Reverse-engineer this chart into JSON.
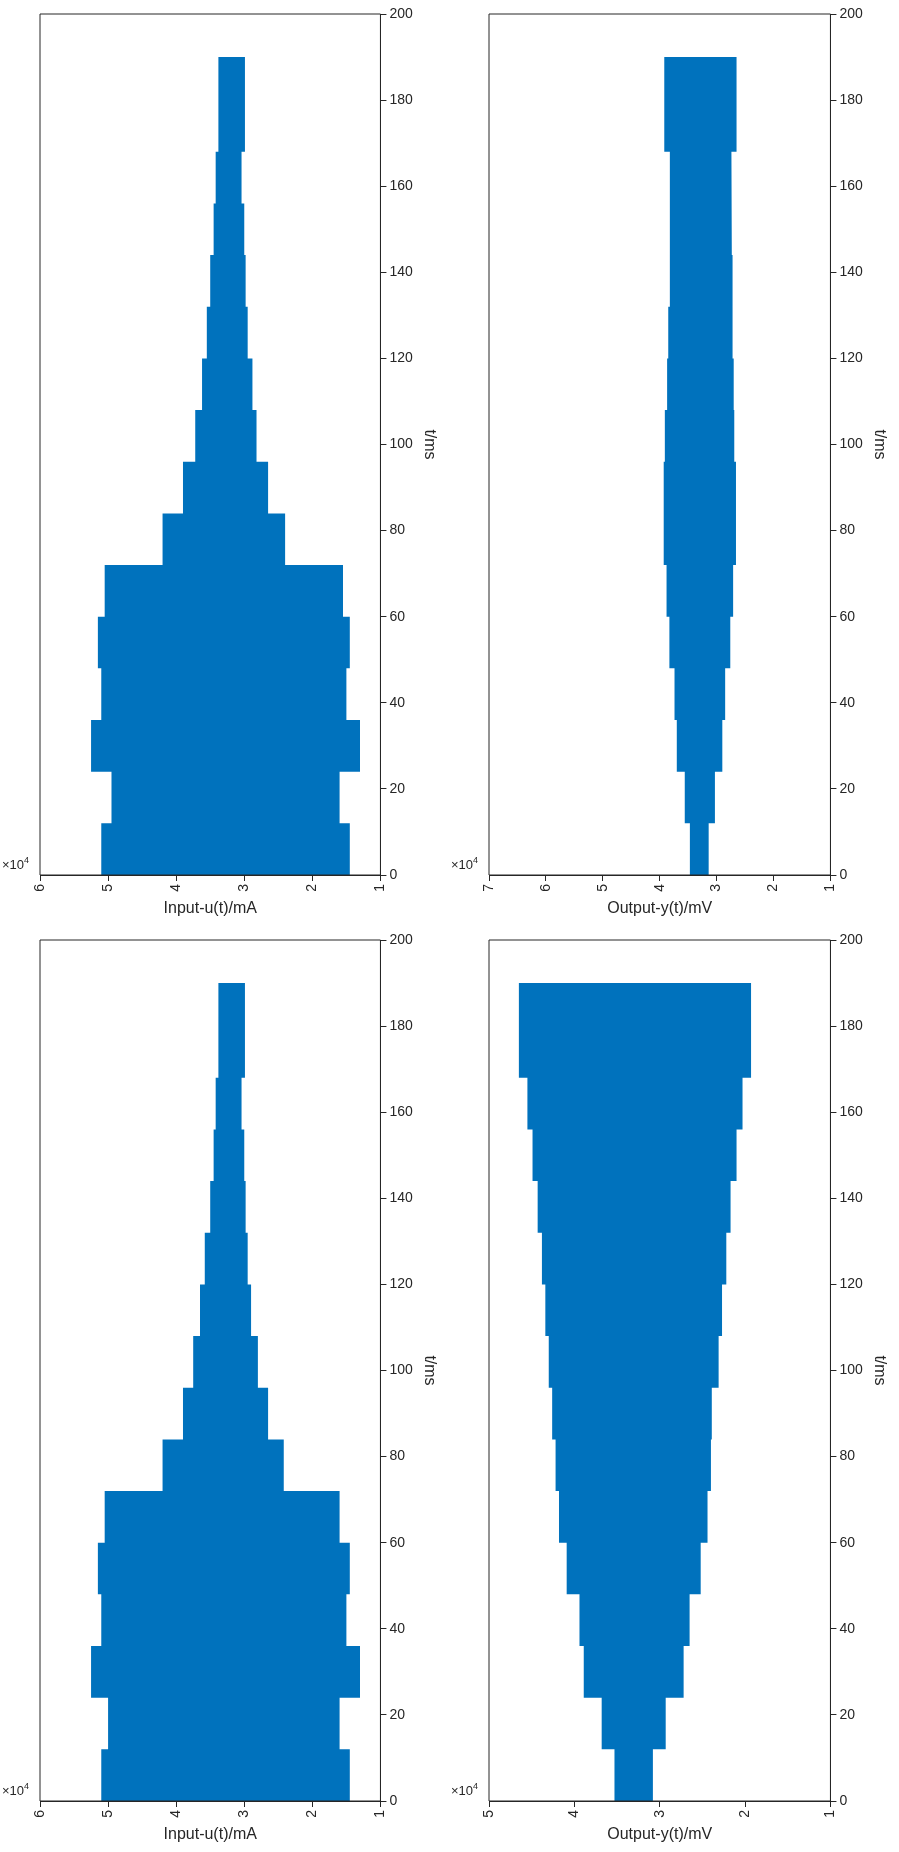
{
  "chart_data": [
    {
      "type": "line",
      "orientation": "horizontal",
      "ylabel": "t/ms",
      "xlabel": "Input-u(t)/mA",
      "annotations": [
        "×10$^{4}$"
      ],
      "ylim": [
        0,
        200
      ],
      "yticks": [
        0,
        20,
        40,
        60,
        80,
        100,
        120,
        140,
        160,
        180,
        200
      ],
      "xlim": [
        6,
        1
      ],
      "xticks": [
        6,
        5,
        4,
        3,
        2,
        1
      ],
      "x": [
        0,
        12,
        12,
        24,
        24,
        36,
        36,
        48,
        48,
        60,
        60,
        72,
        72,
        84,
        84,
        96,
        96,
        108,
        108,
        120,
        120,
        132,
        132,
        144,
        144,
        156,
        156,
        168,
        168,
        190
      ],
      "series": [
        {
          "color": "#0072bd",
          "values": [
            null,
            null,
            null,
            null,
            null,
            null,
            null,
            null,
            null,
            null,
            null,
            null,
            null,
            null,
            null,
            null,
            null,
            null,
            null,
            null,
            null,
            null,
            null,
            null,
            null,
            null,
            null,
            null,
            null,
            null
          ],
          "upper": [
            5.1,
            5.1,
            4.95,
            4.95,
            5.25,
            5.25,
            5.1,
            5.1,
            5.15,
            5.15,
            5.05,
            5.05,
            4.2,
            4.2,
            3.9,
            3.9,
            3.72,
            3.72,
            3.62,
            3.62,
            3.55,
            3.55,
            3.5,
            3.5,
            3.45,
            3.45,
            3.42,
            3.42,
            3.38,
            3.38
          ],
          "lower": [
            1.45,
            1.45,
            1.6,
            1.6,
            1.3,
            1.3,
            1.5,
            1.5,
            1.45,
            1.45,
            1.55,
            1.55,
            2.4,
            2.4,
            2.65,
            2.65,
            2.82,
            2.82,
            2.88,
            2.88,
            2.95,
            2.95,
            2.98,
            2.98,
            3.0,
            3.0,
            3.04,
            3.04,
            2.99,
            2.99
          ]
        }
      ]
    },
    {
      "type": "line",
      "orientation": "horizontal",
      "ylabel": "t/ms",
      "xlabel": "Output-y(t)/mV",
      "annotations": [
        "×10$^{4}$"
      ],
      "ylim": [
        0,
        200
      ],
      "yticks": [
        0,
        20,
        40,
        60,
        80,
        100,
        120,
        140,
        160,
        180,
        200
      ],
      "xlim": [
        7,
        1
      ],
      "xticks": [
        7,
        6,
        5,
        4,
        3,
        2,
        1
      ],
      "x": [
        0,
        12,
        12,
        24,
        24,
        36,
        36,
        48,
        48,
        60,
        60,
        72,
        72,
        84,
        84,
        96,
        96,
        108,
        108,
        120,
        120,
        132,
        132,
        144,
        144,
        156,
        156,
        168,
        168,
        190
      ],
      "series": [
        {
          "color": "#0072bd",
          "values": [
            null,
            null,
            null,
            null,
            null,
            null,
            null,
            null,
            null,
            null,
            null,
            null,
            null,
            null,
            null,
            null,
            null,
            null,
            null,
            null,
            null,
            null,
            null,
            null,
            null,
            null,
            null,
            null,
            null,
            null
          ],
          "upper": [
            3.47,
            3.47,
            3.56,
            3.56,
            3.7,
            3.7,
            3.74,
            3.74,
            3.83,
            3.83,
            3.88,
            3.88,
            3.93,
            3.93,
            3.93,
            3.93,
            3.91,
            3.91,
            3.87,
            3.87,
            3.85,
            3.85,
            3.83,
            3.83,
            3.82,
            3.82,
            3.82,
            3.82,
            3.92,
            3.92
          ],
          "lower": [
            3.14,
            3.14,
            3.03,
            3.03,
            2.9,
            2.9,
            2.85,
            2.85,
            2.76,
            2.76,
            2.71,
            2.71,
            2.66,
            2.66,
            2.66,
            2.66,
            2.69,
            2.69,
            2.7,
            2.7,
            2.72,
            2.72,
            2.72,
            2.72,
            2.73,
            2.73,
            2.74,
            2.74,
            2.65,
            2.65
          ]
        }
      ]
    },
    {
      "type": "line",
      "orientation": "horizontal",
      "ylabel": "t/ms",
      "xlabel": "Input-u(t)/mA",
      "annotations": [
        "×10$^{4}$"
      ],
      "ylim": [
        0,
        200
      ],
      "yticks": [
        0,
        20,
        40,
        60,
        80,
        100,
        120,
        140,
        160,
        180,
        200
      ],
      "xlim": [
        6,
        1
      ],
      "xticks": [
        6,
        5,
        4,
        3,
        2,
        1
      ],
      "x": [
        0,
        12,
        12,
        24,
        24,
        36,
        36,
        48,
        48,
        60,
        60,
        72,
        72,
        84,
        84,
        96,
        96,
        108,
        108,
        120,
        120,
        132,
        132,
        144,
        144,
        156,
        156,
        168,
        168,
        190
      ],
      "series": [
        {
          "color": "#0072bd",
          "values": [
            null,
            null,
            null,
            null,
            null,
            null,
            null,
            null,
            null,
            null,
            null,
            null,
            null,
            null,
            null,
            null,
            null,
            null,
            null,
            null,
            null,
            null,
            null,
            null,
            null,
            null,
            null,
            null,
            null,
            null
          ],
          "upper": [
            5.1,
            5.1,
            5.0,
            5.0,
            5.25,
            5.25,
            5.1,
            5.1,
            5.15,
            5.15,
            5.05,
            5.05,
            4.2,
            4.2,
            3.9,
            3.9,
            3.75,
            3.75,
            3.65,
            3.65,
            3.58,
            3.58,
            3.5,
            3.5,
            3.45,
            3.45,
            3.42,
            3.42,
            3.38,
            3.38
          ],
          "lower": [
            1.45,
            1.45,
            1.6,
            1.6,
            1.3,
            1.3,
            1.5,
            1.5,
            1.45,
            1.45,
            1.6,
            1.6,
            2.42,
            2.42,
            2.65,
            2.65,
            2.8,
            2.8,
            2.9,
            2.9,
            2.95,
            2.95,
            2.98,
            2.98,
            3.0,
            3.0,
            3.04,
            3.04,
            2.99,
            2.99
          ]
        }
      ]
    },
    {
      "type": "line",
      "orientation": "horizontal",
      "ylabel": "t/ms",
      "xlabel": "Output-y(t)/mV",
      "annotations": [
        "×10$^{4}$"
      ],
      "ylim": [
        0,
        200
      ],
      "yticks": [
        0,
        20,
        40,
        60,
        80,
        100,
        120,
        140,
        160,
        180,
        200
      ],
      "xlim": [
        5,
        1
      ],
      "xticks": [
        5,
        4,
        3,
        2,
        1
      ],
      "x": [
        0,
        12,
        12,
        24,
        24,
        36,
        36,
        48,
        48,
        60,
        60,
        72,
        72,
        84,
        84,
        96,
        96,
        108,
        108,
        120,
        120,
        132,
        132,
        144,
        144,
        156,
        156,
        168,
        168,
        190
      ],
      "series": [
        {
          "color": "#0072bd",
          "values": [
            null,
            null,
            null,
            null,
            null,
            null,
            null,
            null,
            null,
            null,
            null,
            null,
            null,
            null,
            null,
            null,
            null,
            null,
            null,
            null,
            null,
            null,
            null,
            null,
            null,
            null,
            null,
            null,
            null,
            null
          ],
          "upper": [
            3.53,
            3.53,
            3.68,
            3.68,
            3.89,
            3.89,
            3.94,
            3.94,
            4.09,
            4.09,
            4.18,
            4.18,
            4.22,
            4.22,
            4.26,
            4.26,
            4.3,
            4.3,
            4.34,
            4.34,
            4.38,
            4.38,
            4.43,
            4.43,
            4.49,
            4.49,
            4.55,
            4.55,
            4.65,
            4.65
          ],
          "lower": [
            3.08,
            3.08,
            2.93,
            2.93,
            2.72,
            2.72,
            2.65,
            2.65,
            2.52,
            2.52,
            2.44,
            2.44,
            2.4,
            2.4,
            2.39,
            2.39,
            2.31,
            2.31,
            2.27,
            2.27,
            2.22,
            2.22,
            2.17,
            2.17,
            2.1,
            2.1,
            2.03,
            2.03,
            1.93,
            1.93
          ]
        }
      ]
    }
  ]
}
